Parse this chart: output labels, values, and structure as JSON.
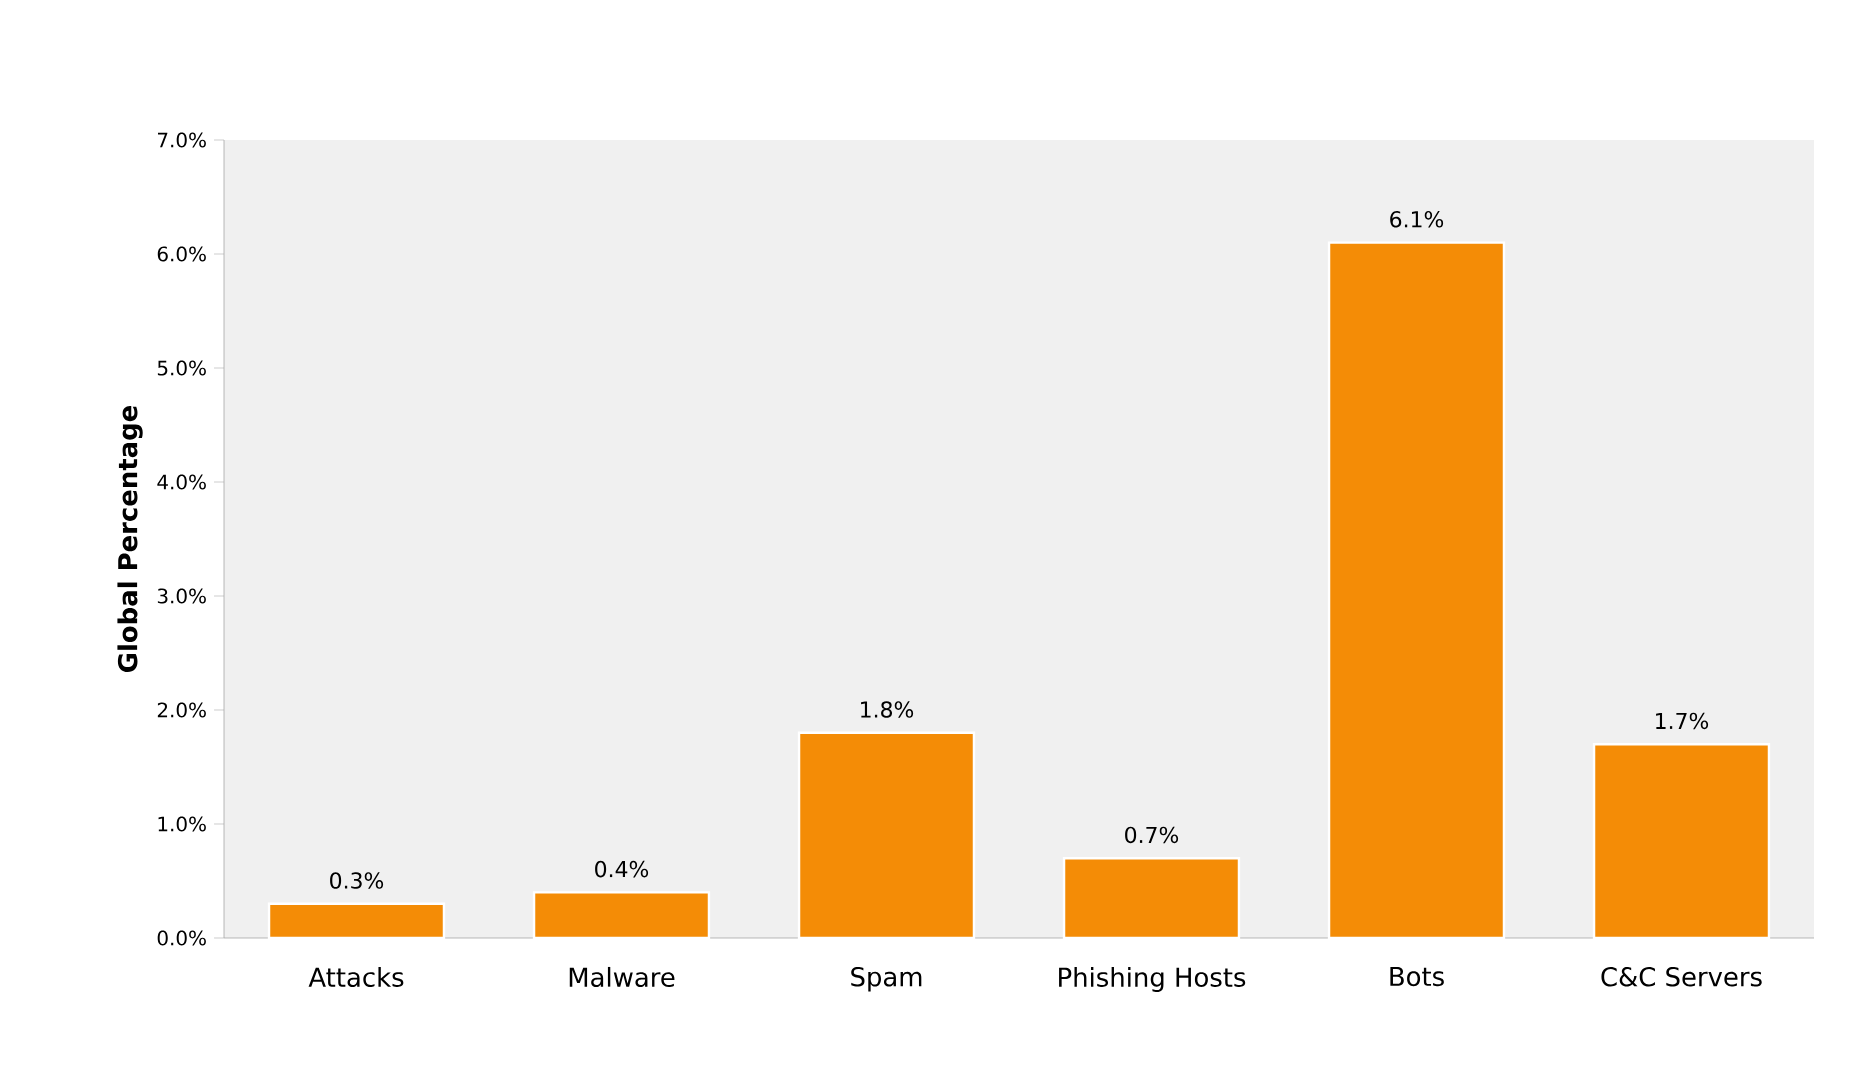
{
  "chart_data": {
    "type": "bar",
    "ylabel": "Global Percentage",
    "categories": [
      "Attacks",
      "Malware",
      "Spam",
      "Phishing Hosts",
      "Bots",
      "C&C Servers"
    ],
    "values": [
      0.3,
      0.4,
      1.8,
      0.7,
      6.1,
      1.7
    ],
    "value_labels": [
      "0.3%",
      "0.4%",
      "1.8%",
      "0.7%",
      "6.1%",
      "1.7%"
    ],
    "color": "#f48c06",
    "ylim": [
      0,
      7
    ],
    "yticks": [
      {
        "value": 0,
        "label": "0.0%"
      },
      {
        "value": 1,
        "label": "1.0%"
      },
      {
        "value": 2,
        "label": "2.0%"
      },
      {
        "value": 3,
        "label": "3.0%"
      },
      {
        "value": 4,
        "label": "4.0%"
      },
      {
        "value": 5,
        "label": "5.0%"
      },
      {
        "value": 6,
        "label": "6.0%"
      },
      {
        "value": 7,
        "label": "7.0%"
      }
    ]
  }
}
